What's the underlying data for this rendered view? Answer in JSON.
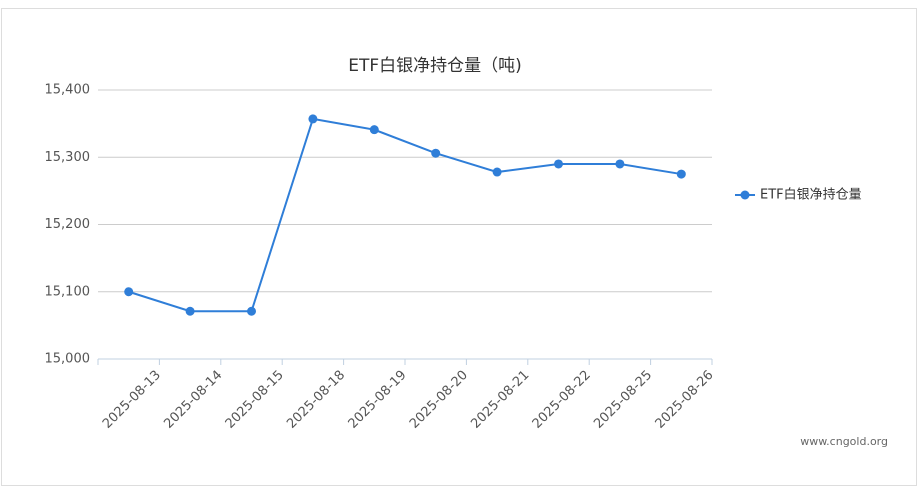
{
  "chart_data": {
    "type": "line",
    "title": "ETF白银净持仓量（吨)",
    "categories": [
      "2025-08-13",
      "2025-08-14",
      "2025-08-15",
      "2025-08-18",
      "2025-08-19",
      "2025-08-20",
      "2025-08-21",
      "2025-08-22",
      "2025-08-25",
      "2025-08-26"
    ],
    "series": [
      {
        "name": "ETF白银净持仓量",
        "color": "#2f7ed8",
        "values": [
          15100,
          15071,
          15071,
          15357,
          15341,
          15306,
          15278,
          15290,
          15290,
          15275
        ]
      }
    ],
    "ylim": [
      15000,
      15400
    ],
    "yticks": [
      {
        "value": 15000,
        "label": "15,000"
      },
      {
        "value": 15100,
        "label": "15,100"
      },
      {
        "value": 15200,
        "label": "15,200"
      },
      {
        "value": 15300,
        "label": "15,300"
      },
      {
        "value": 15400,
        "label": "15,400"
      }
    ],
    "grid": true,
    "legend": "right",
    "watermark": "www.cngold.org"
  }
}
